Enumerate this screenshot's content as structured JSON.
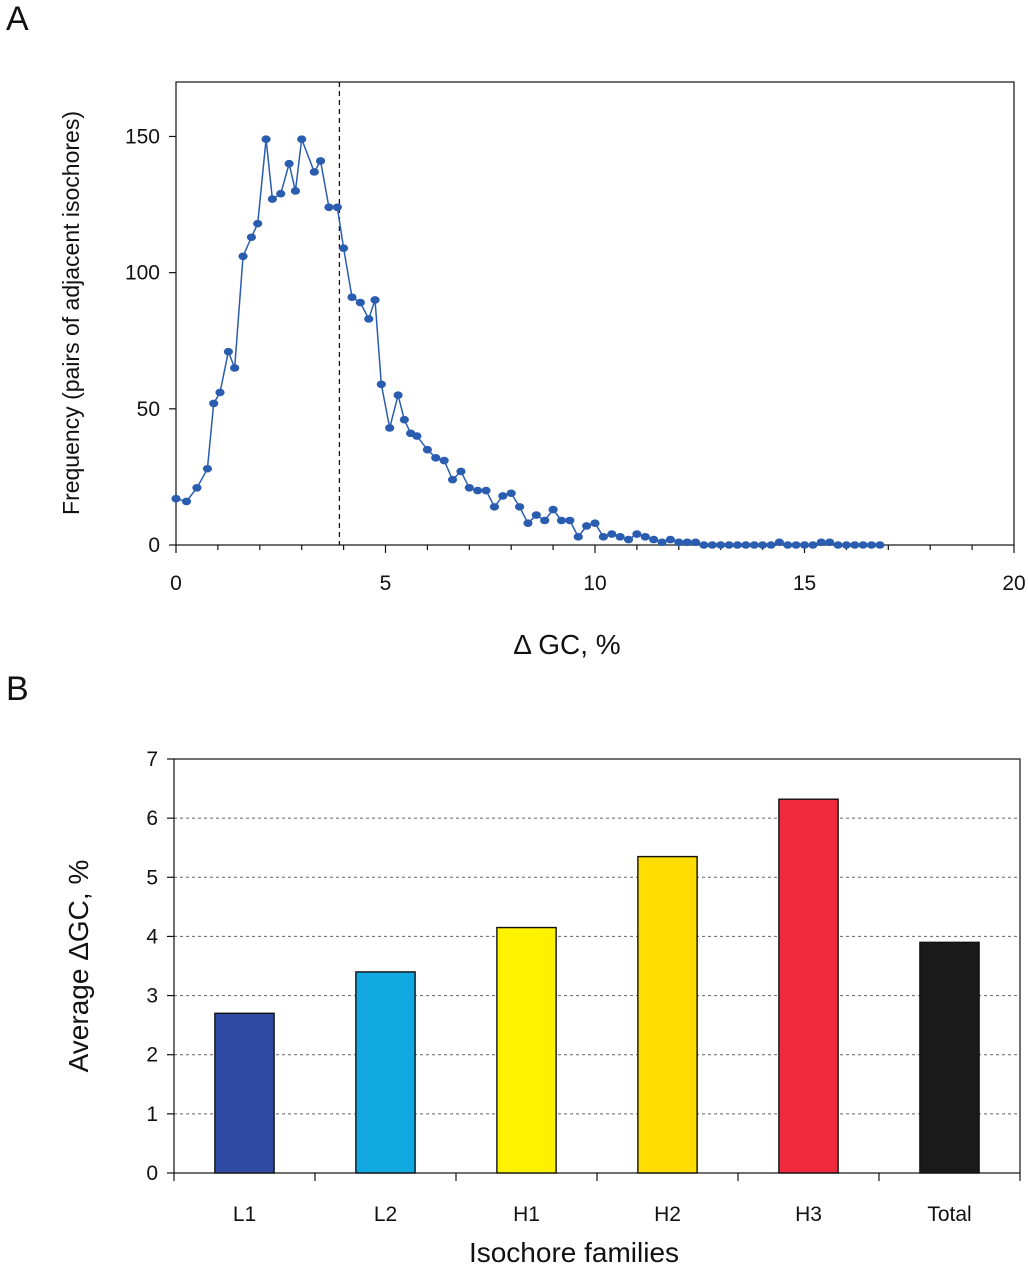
{
  "panels": {
    "a_letter": "A",
    "b_letter": "B"
  },
  "chart_data": [
    {
      "type": "line",
      "panel": "A",
      "title": "",
      "xlabel": "Δ GC, %",
      "ylabel": "Frequency (pairs of adjacent isochores)",
      "xlim": [
        0,
        20
      ],
      "ylim": [
        0,
        170
      ],
      "xticks": [
        0,
        5,
        10,
        15,
        20
      ],
      "yticks": [
        0,
        50,
        100,
        150
      ],
      "grid": false,
      "reference_line": {
        "x": 3.9,
        "style": "dashed"
      },
      "color": "#2a5cb0",
      "series": [
        {
          "x": [
            0.0,
            0.25,
            0.5,
            0.75,
            0.9,
            1.05,
            1.25,
            1.4,
            1.6,
            1.8,
            1.95,
            2.15,
            2.3,
            2.5,
            2.7,
            2.85,
            3.0,
            3.3,
            3.45,
            3.65,
            3.85,
            4.0,
            4.2,
            4.4,
            4.6,
            4.75,
            4.9,
            5.1,
            5.3,
            5.45,
            5.6,
            5.75,
            6.0,
            6.2,
            6.4,
            6.6,
            6.8,
            7.0,
            7.2,
            7.4,
            7.6,
            7.8,
            8.0,
            8.2,
            8.4,
            8.6,
            8.8,
            9.0,
            9.2,
            9.4,
            9.6,
            9.8,
            10.0,
            10.2,
            10.4,
            10.6,
            10.8,
            11.0,
            11.2,
            11.4,
            11.6,
            11.8,
            12.0,
            12.2,
            12.4,
            12.6,
            12.8,
            13.0,
            13.2,
            13.4,
            13.6,
            13.8,
            14.0,
            14.2,
            14.4,
            14.6,
            14.8,
            15.0,
            15.2,
            15.4,
            15.6,
            15.8,
            16.0,
            16.2,
            16.4,
            16.6,
            16.8
          ],
          "values": [
            17,
            16,
            21,
            28,
            52,
            56,
            71,
            65,
            106,
            113,
            118,
            149,
            127,
            129,
            140,
            130,
            149,
            137,
            141,
            124,
            124,
            109,
            91,
            89,
            83,
            90,
            59,
            43,
            55,
            46,
            41,
            40,
            35,
            32,
            31,
            24,
            27,
            21,
            20,
            20,
            14,
            18,
            19,
            14,
            8,
            11,
            9,
            13,
            9,
            9,
            3,
            7,
            8,
            3,
            4,
            3,
            2,
            4,
            3,
            2,
            1,
            2,
            1,
            1,
            1,
            0,
            0,
            0,
            0,
            0,
            0,
            0,
            0,
            0,
            1,
            0,
            0,
            0,
            0,
            1,
            1,
            0,
            0,
            0,
            0,
            0,
            0
          ]
        }
      ]
    },
    {
      "type": "bar",
      "panel": "B",
      "title": "",
      "xlabel": "Isochore families",
      "ylabel": "Average ΔGC, %",
      "ylim": [
        0,
        7
      ],
      "yticks": [
        0,
        1,
        2,
        3,
        4,
        5,
        6,
        7
      ],
      "grid": true,
      "categories": [
        "L1",
        "L2",
        "H1",
        "H2",
        "H3",
        "Total"
      ],
      "values": [
        2.7,
        3.4,
        4.15,
        5.35,
        6.32,
        3.9
      ],
      "colors": [
        "#2e4aa2",
        "#12a8e0",
        "#fff200",
        "#ffdd00",
        "#ef2a3c",
        "#1a1a1a"
      ]
    }
  ]
}
